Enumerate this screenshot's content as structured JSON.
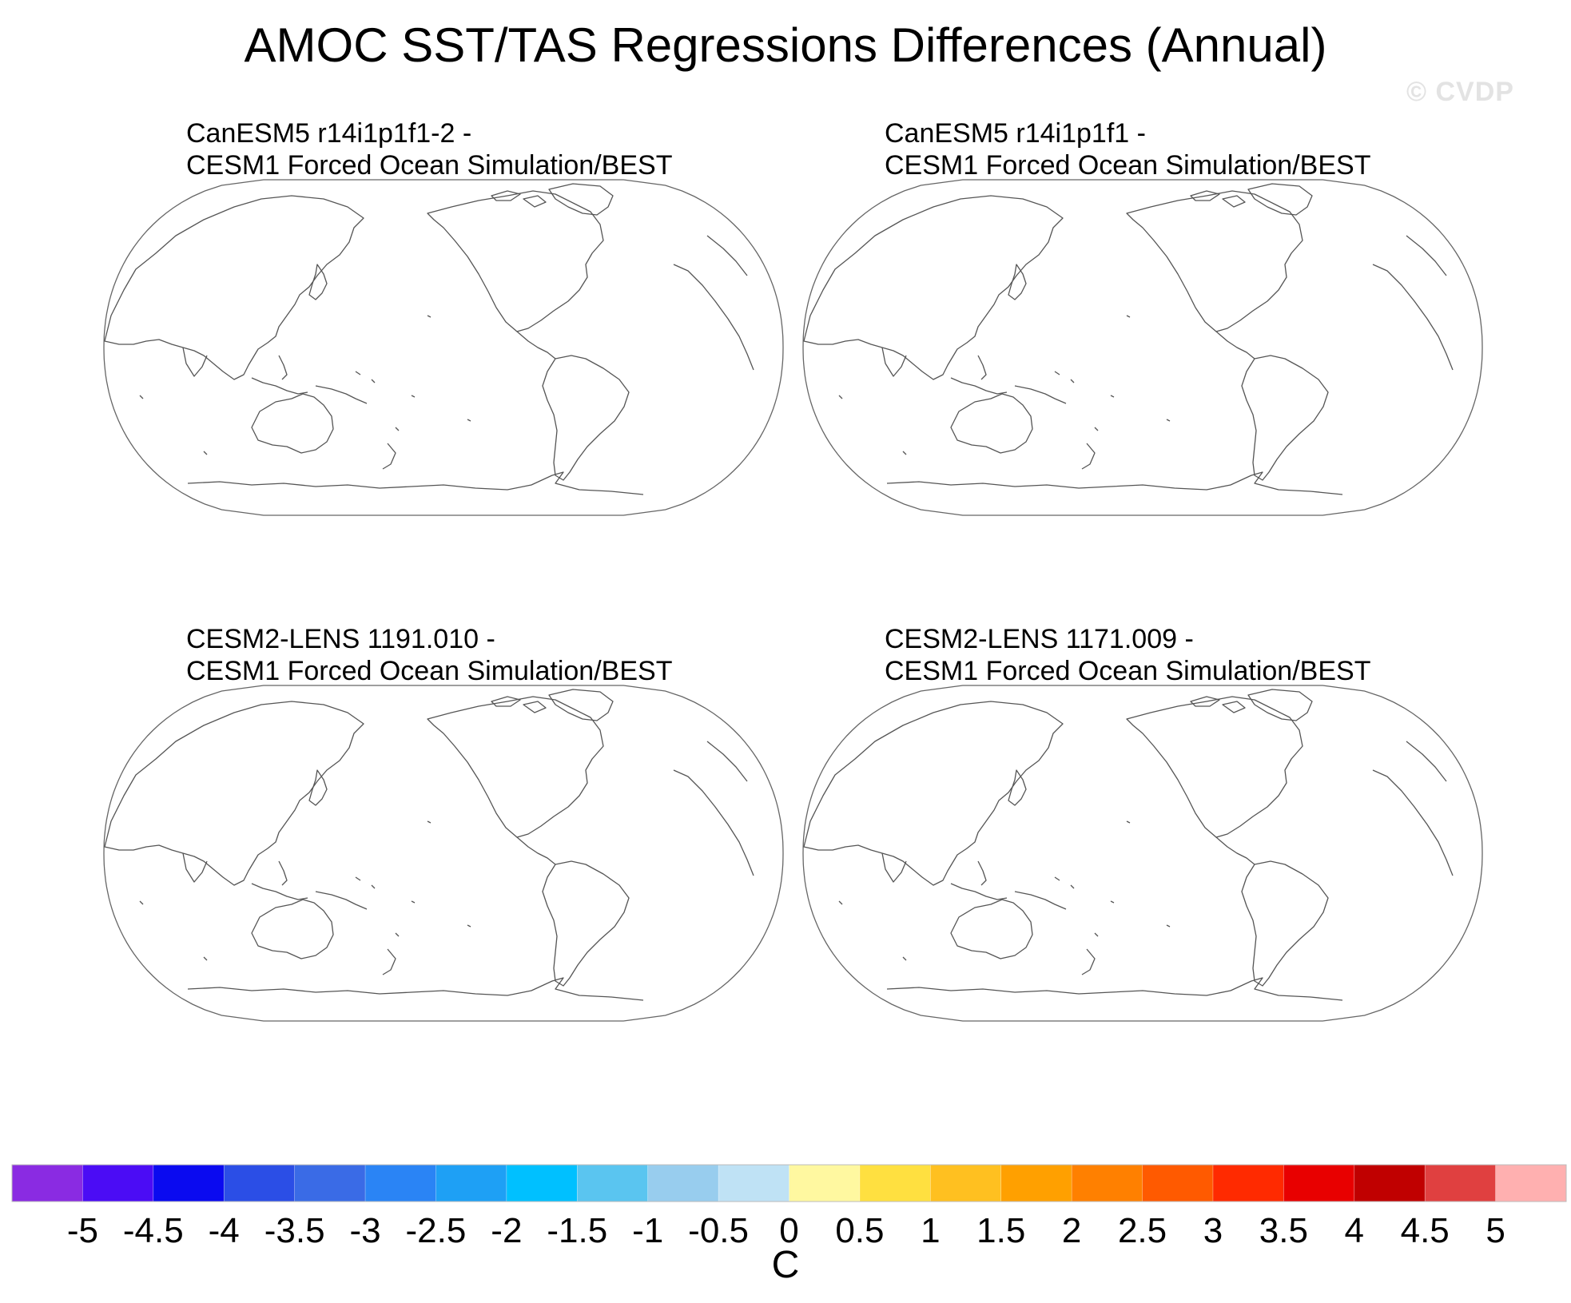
{
  "chart_data": {
    "type": "heatmap",
    "title": "AMOC SST/TAS Regressions Differences (Annual)",
    "watermark": "© CVDP",
    "projection": "Robinson (Pacific-centered)",
    "panels": [
      {
        "title_line1": "CanESM5 r14i1p1f1-2 -",
        "title_line2": "CESM1 Forced Ocean Simulation/BEST"
      },
      {
        "title_line1": "CanESM5 r14i1p1f1 -",
        "title_line2": "CESM1 Forced Ocean Simulation/BEST"
      },
      {
        "title_line1": "CESM2-LENS 1191.010 -",
        "title_line2": "CESM1 Forced Ocean Simulation/BEST"
      },
      {
        "title_line1": "CESM2-LENS 1171.009 -",
        "title_line2": "CESM1 Forced Ocean Simulation/BEST"
      }
    ],
    "colorbar": {
      "unit": "C",
      "levels": [
        -5,
        -4.5,
        -4,
        -3.5,
        -3,
        -2.5,
        -2,
        -1.5,
        -1,
        -0.5,
        0,
        0.5,
        1,
        1.5,
        2,
        2.5,
        3,
        3.5,
        4,
        4.5,
        5
      ],
      "labels": [
        "-5",
        "-4.5",
        "-4",
        "-3.5",
        "-3",
        "-2.5",
        "-2",
        "-1.5",
        "-1",
        "-0.5",
        "0",
        "0.5",
        "1",
        "1.5",
        "2",
        "2.5",
        "3",
        "3.5",
        "4",
        "4.5",
        "5"
      ],
      "colors": [
        "#8a2be2",
        "#4b0cf5",
        "#0a0af0",
        "#2b4ee6",
        "#3a6be6",
        "#2a84f5",
        "#1ea0f5",
        "#00c0ff",
        "#5ac5f0",
        "#98cdee",
        "#bfe2f5",
        "#fff8a0",
        "#ffe040",
        "#ffc020",
        "#ffa000",
        "#ff8000",
        "#ff5a00",
        "#ff2a00",
        "#e80000",
        "#c00000",
        "#e04040",
        "#ffb0b0"
      ]
    }
  }
}
